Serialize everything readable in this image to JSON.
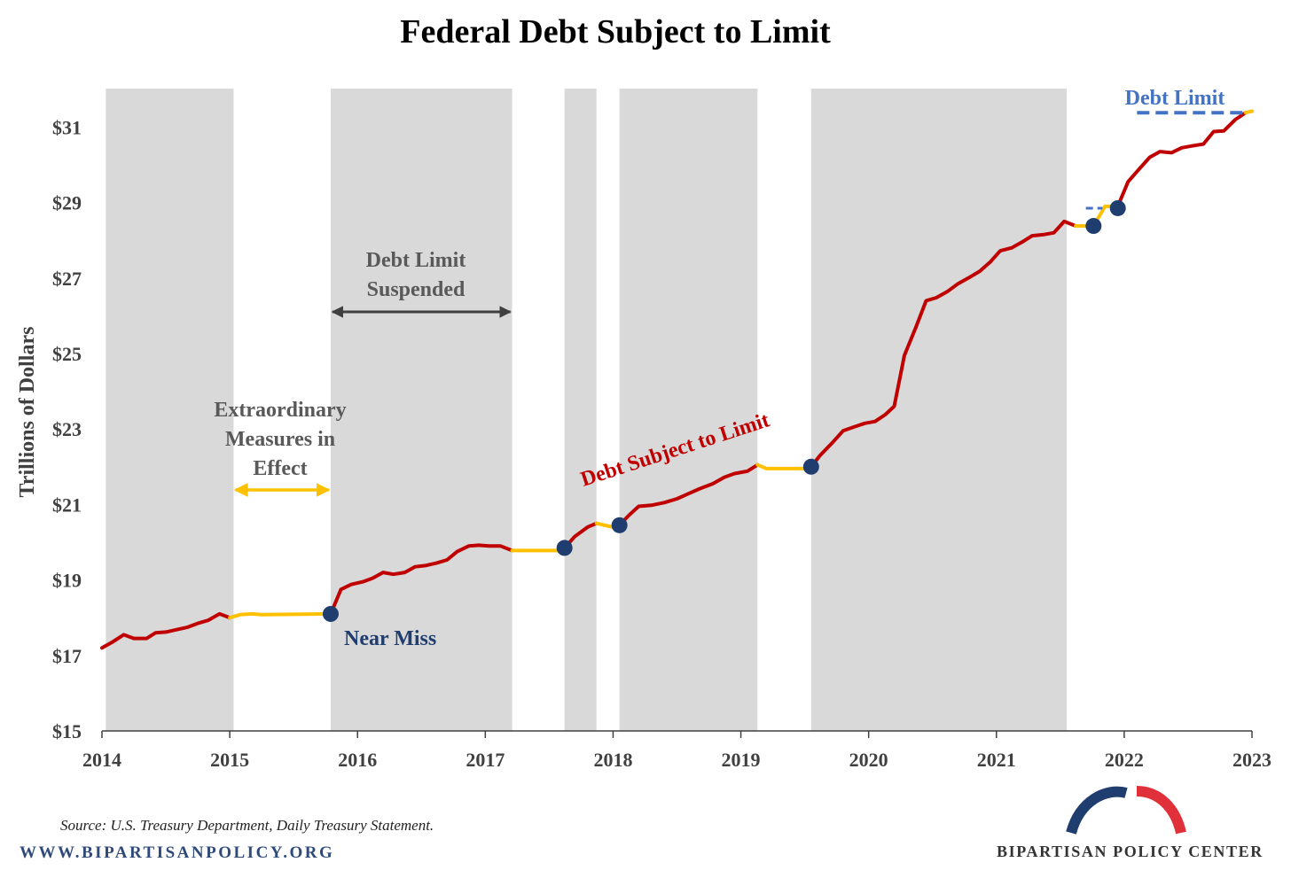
{
  "chart_data": {
    "type": "line",
    "title": "Federal Debt Subject to Limit",
    "ylabel": "Trillions of Dollars",
    "xlabel": "",
    "xlim": [
      2014.0,
      2023.0
    ],
    "ylim": [
      15,
      32
    ],
    "x_ticks": [
      2014,
      2015,
      2016,
      2017,
      2018,
      2019,
      2020,
      2021,
      2022,
      2023
    ],
    "x_tick_labels": [
      "2014",
      "2015",
      "2016",
      "2017",
      "2018",
      "2019",
      "2020",
      "2021",
      "2022",
      "2023"
    ],
    "y_ticks": [
      15,
      17,
      19,
      21,
      23,
      25,
      27,
      29,
      31
    ],
    "y_tick_labels": [
      "$15",
      "$17",
      "$19",
      "$21",
      "$23",
      "$25",
      "$27",
      "$29",
      "$31"
    ],
    "grid": false,
    "shaded_periods": [
      {
        "start": 2014.03,
        "end": 2015.03
      },
      {
        "start": 2015.79,
        "end": 2017.21
      },
      {
        "start": 2017.62,
        "end": 2017.87
      },
      {
        "start": 2018.05,
        "end": 2019.13
      },
      {
        "start": 2019.55,
        "end": 2021.55
      }
    ],
    "series": [
      {
        "name": "Debt Subject to Limit",
        "color": "#c00000",
        "points": [
          [
            2014.0,
            17.2
          ],
          [
            2014.08,
            17.35
          ],
          [
            2014.17,
            17.55
          ],
          [
            2014.25,
            17.45
          ],
          [
            2014.35,
            17.45
          ],
          [
            2014.42,
            17.6
          ],
          [
            2014.5,
            17.62
          ],
          [
            2014.58,
            17.68
          ],
          [
            2014.67,
            17.75
          ],
          [
            2014.75,
            17.85
          ],
          [
            2014.83,
            17.93
          ],
          [
            2014.92,
            18.1
          ],
          [
            2015.0,
            18.0
          ]
        ]
      },
      {
        "name": "Debt Subject to Limit",
        "color": "#c00000",
        "points": [
          [
            2015.79,
            18.1
          ],
          [
            2015.87,
            18.75
          ],
          [
            2015.95,
            18.88
          ],
          [
            2016.04,
            18.95
          ],
          [
            2016.12,
            19.05
          ],
          [
            2016.2,
            19.2
          ],
          [
            2016.28,
            19.15
          ],
          [
            2016.37,
            19.2
          ],
          [
            2016.45,
            19.35
          ],
          [
            2016.53,
            19.38
          ],
          [
            2016.62,
            19.45
          ],
          [
            2016.7,
            19.53
          ],
          [
            2016.78,
            19.75
          ],
          [
            2016.87,
            19.9
          ],
          [
            2016.95,
            19.92
          ],
          [
            2017.03,
            19.9
          ],
          [
            2017.12,
            19.9
          ],
          [
            2017.21,
            19.78
          ]
        ]
      },
      {
        "name": "Debt Subject to Limit",
        "color": "#c00000",
        "points": [
          [
            2017.62,
            19.85
          ],
          [
            2017.7,
            20.15
          ],
          [
            2017.8,
            20.4
          ],
          [
            2017.87,
            20.5
          ]
        ]
      },
      {
        "name": "Debt Subject to Limit",
        "color": "#c00000",
        "points": [
          [
            2018.05,
            20.45
          ],
          [
            2018.12,
            20.7
          ],
          [
            2018.2,
            20.95
          ],
          [
            2018.3,
            20.98
          ],
          [
            2018.4,
            21.05
          ],
          [
            2018.5,
            21.15
          ],
          [
            2018.6,
            21.3
          ],
          [
            2018.68,
            21.42
          ],
          [
            2018.78,
            21.55
          ],
          [
            2018.87,
            21.72
          ],
          [
            2018.95,
            21.82
          ],
          [
            2019.05,
            21.88
          ],
          [
            2019.13,
            22.05
          ]
        ]
      },
      {
        "name": "Debt Subject to Limit",
        "color": "#c00000",
        "points": [
          [
            2019.55,
            22.0
          ],
          [
            2019.62,
            22.3
          ],
          [
            2019.72,
            22.65
          ],
          [
            2019.8,
            22.95
          ],
          [
            2019.88,
            23.05
          ],
          [
            2019.97,
            23.15
          ],
          [
            2020.05,
            23.2
          ],
          [
            2020.13,
            23.38
          ],
          [
            2020.2,
            23.6
          ],
          [
            2020.28,
            24.95
          ],
          [
            2020.37,
            25.7
          ],
          [
            2020.45,
            26.4
          ],
          [
            2020.53,
            26.48
          ],
          [
            2020.62,
            26.65
          ],
          [
            2020.7,
            26.85
          ],
          [
            2020.78,
            27.0
          ],
          [
            2020.87,
            27.18
          ],
          [
            2020.95,
            27.42
          ],
          [
            2021.03,
            27.72
          ],
          [
            2021.12,
            27.8
          ],
          [
            2021.2,
            27.95
          ],
          [
            2021.28,
            28.12
          ],
          [
            2021.37,
            28.15
          ],
          [
            2021.45,
            28.2
          ],
          [
            2021.53,
            28.5
          ],
          [
            2021.62,
            28.38
          ]
        ]
      },
      {
        "name": "Debt Subject to Limit",
        "color": "#c00000",
        "points": [
          [
            2021.95,
            28.9
          ],
          [
            2022.03,
            29.55
          ],
          [
            2022.12,
            29.9
          ],
          [
            2022.2,
            30.2
          ],
          [
            2022.28,
            30.35
          ],
          [
            2022.37,
            30.32
          ],
          [
            2022.45,
            30.45
          ],
          [
            2022.53,
            30.5
          ],
          [
            2022.62,
            30.55
          ],
          [
            2022.7,
            30.88
          ],
          [
            2022.78,
            30.9
          ],
          [
            2022.87,
            31.2
          ],
          [
            2022.95,
            31.38
          ]
        ]
      },
      {
        "name": "Extraordinary Measures",
        "color": "#ffc000",
        "segments": [
          [
            [
              2015.0,
              18.0
            ],
            [
              2015.08,
              18.08
            ],
            [
              2015.17,
              18.1
            ],
            [
              2015.25,
              18.08
            ],
            [
              2015.79,
              18.1
            ]
          ],
          [
            [
              2017.21,
              19.78
            ],
            [
              2017.62,
              19.78
            ]
          ],
          [
            [
              2017.87,
              20.5
            ],
            [
              2018.0,
              20.4
            ],
            [
              2018.05,
              20.45
            ]
          ],
          [
            [
              2019.13,
              22.05
            ],
            [
              2019.2,
              21.95
            ],
            [
              2019.55,
              21.95
            ]
          ],
          [
            [
              2021.62,
              28.38
            ],
            [
              2021.76,
              28.38
            ],
            [
              2021.85,
              28.9
            ],
            [
              2021.95,
              28.9
            ]
          ],
          [
            [
              2022.95,
              31.38
            ],
            [
              2023.0,
              31.42
            ]
          ]
        ]
      }
    ],
    "debt_limit_line": {
      "points": [
        [
          2021.7,
          28.85
        ],
        [
          2021.83,
          28.85
        ]
      ]
    },
    "debt_limit_top": {
      "label": "Debt Limit",
      "start": 2022.1,
      "end": 2022.97,
      "value": 31.38
    },
    "markers": [
      {
        "x": 2015.79,
        "y": 18.1
      },
      {
        "x": 2017.62,
        "y": 19.85
      },
      {
        "x": 2018.05,
        "y": 20.45
      },
      {
        "x": 2019.55,
        "y": 22.0
      },
      {
        "x": 2021.76,
        "y": 28.38
      },
      {
        "x": 2021.95,
        "y": 28.85
      }
    ],
    "annotations": {
      "extraordinary": [
        "Extraordinary",
        "Measures in",
        "Effect"
      ],
      "extraordinary_arrow": [
        2015.03,
        2015.79
      ],
      "suspended": [
        "Debt Limit",
        "Suspended"
      ],
      "suspended_arrow": [
        2015.79,
        2017.21
      ],
      "near_miss": "Near Miss",
      "debt_subject": "Debt Subject to Limit"
    },
    "colors": {
      "shade": "#d9d9d9",
      "debt_line": "#c00000",
      "extraordinary": "#ffc000",
      "marker": "#1f3d6e",
      "debt_limit": "#4472c4",
      "suspended_arrow": "#404040"
    }
  },
  "footer": {
    "source": "Source: U.S. Treasury Department, Daily Treasury Statement.",
    "website": "WWW.BIPARTISANPOLICY.ORG",
    "org": "BIPARTISAN POLICY CENTER"
  }
}
